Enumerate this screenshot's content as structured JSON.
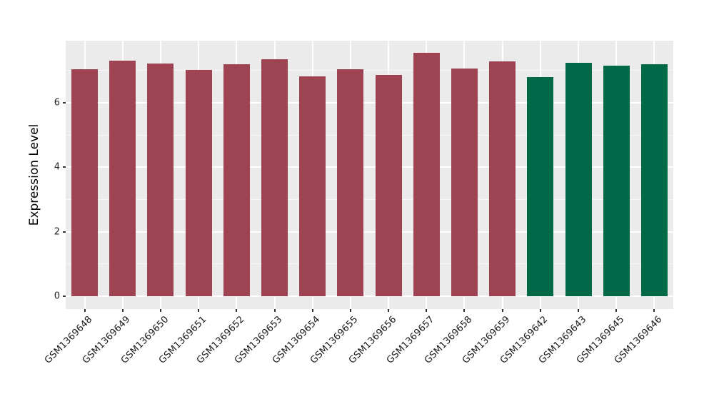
{
  "figure": {
    "background": "#ffffff",
    "panel_background": "#EBEBEB",
    "grid_color": "#ffffff",
    "tick_mark_color": "#333333",
    "tick_label_color": "#262626",
    "axis_title_color": "#000000",
    "bar_color_red": "#9E4351",
    "bar_color_green": "#016948"
  },
  "chart_data": {
    "type": "bar",
    "title": "",
    "xlabel": "",
    "ylabel": "Expression Level",
    "grid": true,
    "legend": "none",
    "ylim": [
      -0.4,
      7.93
    ],
    "ytick_values": [
      0,
      2,
      4,
      6
    ],
    "ytick_labels": [
      "0",
      "2",
      "4",
      "6"
    ],
    "minor_ytick_values": [
      1,
      3,
      5,
      7
    ],
    "categories": [
      "GSM1369648",
      "GSM1369649",
      "GSM1369650",
      "GSM1369651",
      "GSM1369652",
      "GSM1369653",
      "GSM1369654",
      "GSM1369655",
      "GSM1369656",
      "GSM1369657",
      "GSM1369658",
      "GSM1369659",
      "GSM1369642",
      "GSM1369643",
      "GSM1369645",
      "GSM1369646"
    ],
    "values": [
      7.05,
      7.3,
      7.22,
      7.01,
      7.2,
      7.35,
      6.82,
      7.05,
      6.86,
      7.55,
      7.06,
      7.28,
      6.8,
      7.24,
      7.15,
      7.19
    ],
    "colors": [
      "#9E4351",
      "#9E4351",
      "#9E4351",
      "#9E4351",
      "#9E4351",
      "#9E4351",
      "#9E4351",
      "#9E4351",
      "#9E4351",
      "#9E4351",
      "#9E4351",
      "#9E4351",
      "#016948",
      "#016948",
      "#016948",
      "#016948"
    ]
  }
}
